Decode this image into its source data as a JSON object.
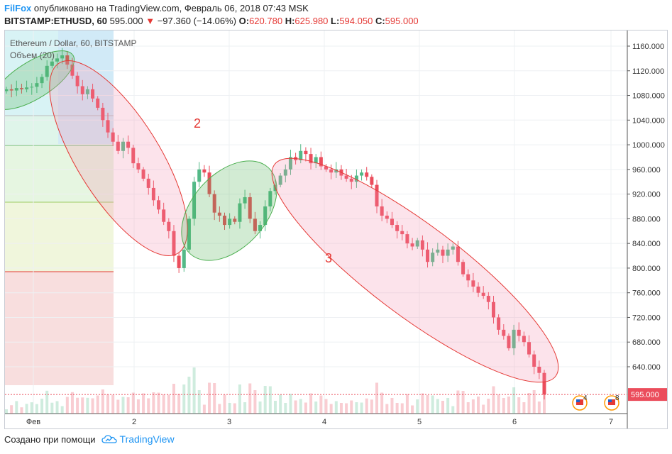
{
  "header": {
    "author": "FilFox",
    "published_text": "опубликовано на TradingView.com, Февраль 06, 2018 07:43 MSK",
    "symbol": "BITSTAMP:ETHUSD, 60",
    "last": "595.000",
    "change": "−97.360 (−14.06%)",
    "o_label": "O:",
    "o": "620.780",
    "h_label": "H:",
    "h": "625.980",
    "l_label": "L:",
    "l": "594.050",
    "c_label": "C:",
    "c": "595.000"
  },
  "legend": {
    "title": "Ethereum / Dollar, 60, BITSTAMP",
    "volume": "Объем (20)"
  },
  "chart_data": {
    "type": "candlestick",
    "price_axis": [
      "1160.000",
      "1120.000",
      "1080.000",
      "1040.000",
      "1000.000",
      "960.000",
      "920.000",
      "880.000",
      "840.000",
      "800.000",
      "760.000",
      "720.000",
      "680.000",
      "640.000"
    ],
    "ylim": [
      575,
      1180
    ],
    "time_axis": [
      "Фев",
      "2",
      "3",
      "4",
      "5",
      "6",
      "7"
    ],
    "last_price_label": "595.000",
    "annotations": [
      "2",
      "3"
    ],
    "event_badges": [
      "4",
      "8"
    ],
    "path_close": [
      1090,
      1088,
      1092,
      1090,
      1093,
      1094,
      1100,
      1110,
      1128,
      1135,
      1140,
      1145,
      1130,
      1112,
      1095,
      1082,
      1090,
      1075,
      1060,
      1040,
      1020,
      1005,
      990,
      1005,
      995,
      970,
      960,
      945,
      930,
      910,
      895,
      875,
      860,
      820,
      800,
      830,
      880,
      940,
      960,
      955,
      920,
      890,
      885,
      870,
      880,
      875,
      905,
      915,
      880,
      860,
      870,
      900,
      925,
      935,
      950,
      960,
      980,
      975,
      990,
      985,
      970,
      980,
      965,
      960,
      955,
      960,
      950,
      945,
      940,
      950,
      955,
      948,
      935,
      900,
      885,
      880,
      870,
      860,
      855,
      840,
      835,
      845,
      830,
      810,
      825,
      830,
      820,
      830,
      835,
      810,
      790,
      780,
      770,
      760,
      755,
      745,
      720,
      700,
      690,
      670,
      700,
      690,
      680,
      660,
      640,
      630,
      595
    ]
  },
  "footer": {
    "created_with": "Создано при помощи",
    "brand": "TradingView"
  },
  "colors": {
    "up": "#53b987",
    "down": "#eb4d5c",
    "ellipse_red": "#e53935",
    "ellipse_green": "#4caf50"
  }
}
